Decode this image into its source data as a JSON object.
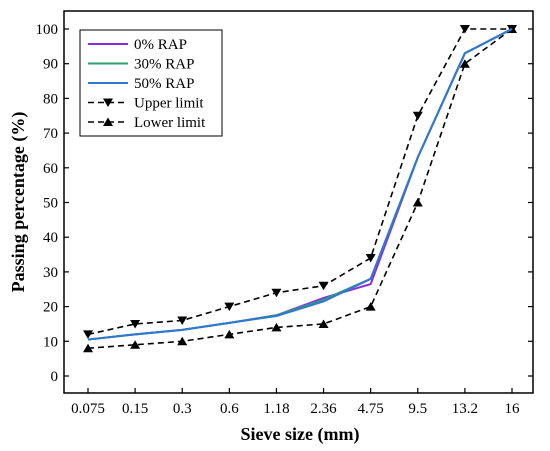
{
  "chart_data": {
    "type": "line",
    "title": "",
    "xlabel": "Sieve size (mm)",
    "ylabel": "Passing percentage (%)",
    "categories": [
      "0.075",
      "0.15",
      "0.3",
      "0.6",
      "1.18",
      "2.36",
      "4.75",
      "9.5",
      "13.2",
      "16"
    ],
    "ylim": [
      0,
      105
    ],
    "yticks": [
      0,
      10,
      20,
      30,
      40,
      50,
      60,
      70,
      80,
      90,
      100
    ],
    "grid": false,
    "legend_position": "top-left",
    "series": [
      {
        "name": "0% RAP",
        "color": "#8B2BE2",
        "style": "solid",
        "marker": "none",
        "values": [
          10.5,
          12,
          13.3,
          15.3,
          17.5,
          22.5,
          26.5,
          63,
          93,
          100
        ]
      },
      {
        "name": "30% RAP",
        "color": "#2E9E6E",
        "style": "solid",
        "marker": "none",
        "values": [
          10.5,
          12,
          13.3,
          15.3,
          17.5,
          22,
          28,
          63,
          93,
          100
        ]
      },
      {
        "name": "50% RAP",
        "color": "#2F78D0",
        "style": "solid",
        "marker": "none",
        "values": [
          10.5,
          12,
          13.3,
          15.3,
          17.3,
          21.5,
          28,
          63,
          93,
          100
        ]
      },
      {
        "name": "Upper limit",
        "color": "#000000",
        "style": "dashed",
        "marker": "triangle-down",
        "values": [
          12,
          15,
          16,
          20,
          24,
          26,
          34,
          75,
          100,
          100
        ]
      },
      {
        "name": "Lower limit",
        "color": "#000000",
        "style": "dashed",
        "marker": "triangle-up",
        "values": [
          8,
          9,
          10,
          12,
          14,
          15,
          20,
          50,
          90,
          100
        ]
      }
    ]
  }
}
